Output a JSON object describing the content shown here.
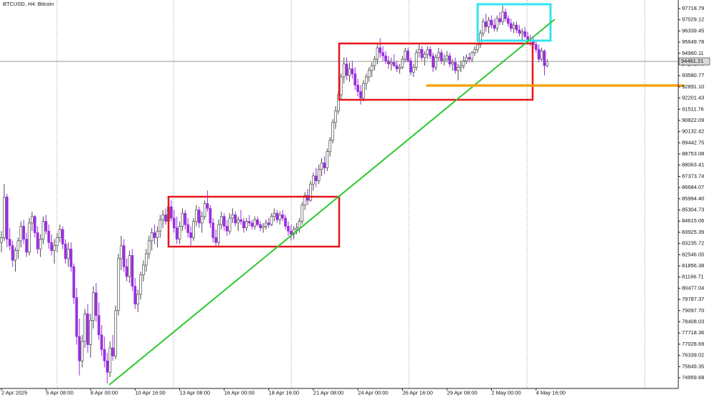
{
  "chart_data": {
    "type": "candlestick",
    "title": "BTCUSD, H4:  Bitcoin",
    "up_color": "#ffffff",
    "down_color": "#9a2ee0",
    "outline_color": "#4a4a4a",
    "last_price": 94461.21,
    "ylim": [
      74300,
      98246
    ],
    "yticks": [
      97718.79,
      97029.12,
      96339.45,
      95649.78,
      94960.11,
      94270.44,
      93580.77,
      {
        "value": 92891.1,
        "label": "92891.10"
      },
      92201.43,
      91511.76,
      90822.09,
      90132.42,
      89442.75,
      88753.08,
      88063.41,
      87373.74,
      86684.07,
      {
        "value": 85994.4,
        "label": "85994.40"
      },
      85304.73,
      84615.06,
      83925.39,
      83235.72,
      82546.05,
      81856.38,
      81166.71,
      80477.04,
      79787.37,
      {
        "value": 79097.7,
        "label": "79097.70"
      },
      78408.03,
      77718.36,
      77028.69,
      76339.02,
      75649.35,
      74959.68
    ],
    "categories": [
      "2 Apr 2025",
      null,
      null,
      null,
      null,
      null,
      null,
      null,
      null,
      null,
      null,
      null,
      null,
      null,
      null,
      null,
      "5 Apr 08:00",
      null,
      null,
      null,
      null,
      null,
      null,
      null,
      null,
      null,
      null,
      null,
      null,
      null,
      null,
      null,
      "8 Apr 00:00",
      null,
      null,
      null,
      null,
      null,
      null,
      null,
      null,
      null,
      null,
      null,
      null,
      null,
      null,
      null,
      "10 Apr 16:00",
      null,
      null,
      null,
      null,
      null,
      null,
      null,
      null,
      null,
      null,
      null,
      null,
      null,
      null,
      null,
      "13 Apr 08:00",
      null,
      null,
      null,
      null,
      null,
      null,
      null,
      null,
      null,
      null,
      null,
      null,
      null,
      null,
      null,
      "16 Apr 00:00",
      null,
      null,
      null,
      null,
      null,
      null,
      null,
      null,
      null,
      null,
      null,
      null,
      null,
      null,
      null,
      "18 Apr 16:00",
      null,
      null,
      null,
      null,
      null,
      null,
      null,
      null,
      null,
      null,
      null,
      null,
      null,
      null,
      null,
      "21 Apr 08:00",
      null,
      null,
      null,
      null,
      null,
      null,
      null,
      null,
      null,
      null,
      null,
      null,
      null,
      null,
      null,
      "24 Apr 00:00",
      null,
      null,
      null,
      null,
      null,
      null,
      null,
      null,
      null,
      null,
      null,
      null,
      null,
      null,
      null,
      "26 Apr 16:00",
      null,
      null,
      null,
      null,
      null,
      null,
      null,
      null,
      null,
      null,
      null,
      null,
      null,
      null,
      null,
      "29 Apr 08:00",
      null,
      null,
      null,
      null,
      null,
      null,
      null,
      null,
      null,
      null,
      null,
      null,
      null,
      null,
      null,
      "2 May 00:00",
      null,
      null,
      null,
      null,
      null,
      null,
      null,
      null,
      null,
      null,
      null,
      null,
      null,
      null,
      null,
      "4 May 16:00",
      null,
      null,
      null,
      null
    ],
    "candles": [
      [
        83300,
        84000,
        82700,
        83600
      ],
      [
        83600,
        86900,
        83400,
        86100
      ],
      [
        86100,
        86300,
        83000,
        83500
      ],
      [
        83500,
        84200,
        82800,
        83100
      ],
      [
        83100,
        83400,
        81800,
        82200
      ],
      [
        82200,
        83000,
        81500,
        82800
      ],
      [
        82800,
        83600,
        82300,
        83400
      ],
      [
        83400,
        84600,
        83000,
        84300
      ],
      [
        84300,
        84700,
        83200,
        83500
      ],
      [
        83500,
        83900,
        82400,
        82700
      ],
      [
        82700,
        84800,
        82500,
        84500
      ],
      [
        84500,
        85200,
        84000,
        84900
      ],
      [
        84900,
        85000,
        83600,
        83900
      ],
      [
        83900,
        84300,
        82600,
        82900
      ],
      [
        82900,
        83800,
        82400,
        83500
      ],
      [
        83500,
        84900,
        83200,
        84600
      ],
      [
        84600,
        85000,
        83800,
        84000
      ],
      [
        84000,
        84400,
        82900,
        83300
      ],
      [
        83300,
        83800,
        82500,
        82800
      ],
      [
        82800,
        83500,
        82000,
        83100
      ],
      [
        83100,
        83900,
        82700,
        83600
      ],
      [
        83600,
        84400,
        83300,
        84100
      ],
      [
        84100,
        84300,
        82900,
        83200
      ],
      [
        83200,
        83500,
        82000,
        82300
      ],
      [
        82300,
        83300,
        81800,
        82900
      ],
      [
        82900,
        83300,
        81500,
        81800
      ],
      [
        81800,
        82000,
        79500,
        79900
      ],
      [
        79900,
        80500,
        77000,
        77500
      ],
      [
        77500,
        78600,
        75100,
        76000
      ],
      [
        76000,
        77600,
        75600,
        77200
      ],
      [
        77200,
        79200,
        76800,
        78900
      ],
      [
        78900,
        79500,
        76500,
        77000
      ],
      [
        77000,
        78900,
        76200,
        78500
      ],
      [
        78500,
        80600,
        78000,
        80200
      ],
      [
        80200,
        80800,
        78400,
        78800
      ],
      [
        78800,
        79600,
        77300,
        77600
      ],
      [
        77600,
        78200,
        76300,
        76700
      ],
      [
        76700,
        77500,
        75600,
        76000
      ],
      [
        76000,
        76500,
        74600,
        75300
      ],
      [
        75300,
        77200,
        75000,
        76800
      ],
      [
        76800,
        77600,
        76000,
        76300
      ],
      [
        76300,
        79400,
        76100,
        79100
      ],
      [
        79100,
        82600,
        78800,
        82300
      ],
      [
        82300,
        83700,
        81600,
        83100
      ],
      [
        83100,
        83500,
        81500,
        81800
      ],
      [
        81800,
        82300,
        80900,
        81200
      ],
      [
        81200,
        82800,
        80800,
        82500
      ],
      [
        82500,
        82900,
        80300,
        80600
      ],
      [
        80600,
        81100,
        79200,
        79500
      ],
      [
        79500,
        80400,
        79000,
        80100
      ],
      [
        80100,
        81500,
        79800,
        81300
      ],
      [
        81300,
        82200,
        80900,
        81900
      ],
      [
        81900,
        82900,
        81500,
        82600
      ],
      [
        82600,
        83700,
        82300,
        83400
      ],
      [
        83400,
        84200,
        82800,
        83900
      ],
      [
        83900,
        84400,
        83200,
        83600
      ],
      [
        83600,
        84300,
        83000,
        84000
      ],
      [
        84000,
        85000,
        83600,
        84700
      ],
      [
        84700,
        85300,
        84200,
        85000
      ],
      [
        85000,
        85400,
        84400,
        84600
      ],
      [
        84600,
        85700,
        84300,
        85500
      ],
      [
        85500,
        85900,
        84600,
        84800
      ],
      [
        84800,
        85300,
        83900,
        84200
      ],
      [
        84200,
        84900,
        83200,
        83500
      ],
      [
        83500,
        84600,
        83200,
        84300
      ],
      [
        84300,
        85400,
        84000,
        85100
      ],
      [
        85100,
        85300,
        84100,
        84400
      ],
      [
        84400,
        84800,
        83600,
        83900
      ],
      [
        83900,
        84300,
        83100,
        83600
      ],
      [
        83600,
        84800,
        83400,
        84600
      ],
      [
        84600,
        85600,
        84300,
        85300
      ],
      [
        85300,
        85500,
        84200,
        84500
      ],
      [
        84500,
        85200,
        83900,
        84900
      ],
      [
        84900,
        85900,
        84700,
        85700
      ],
      [
        85700,
        86500,
        85200,
        85400
      ],
      [
        85400,
        85600,
        84200,
        84500
      ],
      [
        84500,
        84800,
        83300,
        83600
      ],
      [
        83600,
        84100,
        83000,
        83300
      ],
      [
        83300,
        84700,
        83100,
        84400
      ],
      [
        84400,
        85200,
        84100,
        84900
      ],
      [
        84900,
        85100,
        84000,
        84300
      ],
      [
        84300,
        84700,
        83700,
        84000
      ],
      [
        84000,
        85100,
        83800,
        84800
      ],
      [
        84800,
        85400,
        84500,
        85000
      ],
      [
        85000,
        85200,
        84300,
        84500
      ],
      [
        84500,
        84900,
        84000,
        84700
      ],
      [
        84700,
        85300,
        84400,
        84600
      ],
      [
        84600,
        84800,
        83900,
        84200
      ],
      [
        84200,
        84800,
        84000,
        84600
      ],
      [
        84600,
        85000,
        84300,
        84500
      ],
      [
        84500,
        84700,
        84100,
        84300
      ],
      [
        84300,
        84900,
        84100,
        84700
      ],
      [
        84700,
        84900,
        84300,
        84400
      ],
      [
        84400,
        84600,
        84000,
        84200
      ],
      [
        84200,
        84500,
        83900,
        84300
      ],
      [
        84300,
        84700,
        84100,
        84500
      ],
      [
        84500,
        84800,
        84200,
        84400
      ],
      [
        84400,
        85100,
        84300,
        84900
      ],
      [
        84900,
        85400,
        84600,
        85100
      ],
      [
        85100,
        85300,
        84500,
        84700
      ],
      [
        84700,
        85200,
        84400,
        85000
      ],
      [
        85000,
        85300,
        84600,
        84800
      ],
      [
        84800,
        85000,
        84100,
        84300
      ],
      [
        84300,
        84600,
        83700,
        84000
      ],
      [
        84000,
        84400,
        83400,
        83800
      ],
      [
        83800,
        84300,
        83500,
        84100
      ],
      [
        84100,
        84500,
        83800,
        84200
      ],
      [
        84200,
        84800,
        83900,
        84600
      ],
      [
        84600,
        85800,
        84400,
        85600
      ],
      [
        85600,
        86400,
        85300,
        86200
      ],
      [
        86200,
        86600,
        85600,
        85900
      ],
      [
        85900,
        87100,
        85800,
        86900
      ],
      [
        86900,
        87600,
        86500,
        87400
      ],
      [
        87400,
        87900,
        86700,
        87100
      ],
      [
        87100,
        88100,
        86900,
        87800
      ],
      [
        87800,
        88500,
        87400,
        88200
      ],
      [
        88200,
        88600,
        87500,
        87900
      ],
      [
        87900,
        89100,
        87700,
        88900
      ],
      [
        88900,
        89800,
        88600,
        89600
      ],
      [
        89600,
        90900,
        89400,
        90700
      ],
      [
        90700,
        91700,
        90300,
        91400
      ],
      [
        91400,
        92600,
        91200,
        92400
      ],
      [
        92400,
        93700,
        92100,
        93500
      ],
      [
        93500,
        94700,
        93100,
        94300
      ],
      [
        94300,
        94700,
        93300,
        93600
      ],
      [
        93600,
        94400,
        93200,
        94000
      ],
      [
        94000,
        94500,
        93400,
        93700
      ],
      [
        93700,
        94100,
        92700,
        93000
      ],
      [
        93000,
        93400,
        92300,
        92600
      ],
      [
        92600,
        93000,
        91800,
        92200
      ],
      [
        92200,
        93300,
        92000,
        93100
      ],
      [
        93100,
        93700,
        92700,
        93500
      ],
      [
        93500,
        94100,
        93200,
        93900
      ],
      [
        93900,
        94400,
        93500,
        94200
      ],
      [
        94200,
        94800,
        93900,
        94600
      ],
      [
        94600,
        95500,
        94300,
        95300
      ],
      [
        95300,
        95900,
        94700,
        95000
      ],
      [
        95000,
        95400,
        94500,
        94800
      ],
      [
        94800,
        95100,
        94300,
        94500
      ],
      [
        94500,
        94800,
        94000,
        94300
      ],
      [
        94300,
        94700,
        93900,
        94400
      ],
      [
        94400,
        94900,
        94100,
        94200
      ],
      [
        94200,
        94500,
        93800,
        94000
      ],
      [
        94000,
        94300,
        93700,
        94100
      ],
      [
        94100,
        94800,
        94000,
        94600
      ],
      [
        94600,
        95300,
        94400,
        95100
      ],
      [
        95100,
        95300,
        94400,
        94500
      ],
      [
        94500,
        94700,
        93600,
        93800
      ],
      [
        93800,
        94300,
        93500,
        94100
      ],
      [
        94100,
        95200,
        93900,
        95000
      ],
      [
        95000,
        95500,
        94700,
        95200
      ],
      [
        95200,
        95400,
        94500,
        94700
      ],
      [
        94700,
        95100,
        94200,
        94900
      ],
      [
        94900,
        95400,
        94600,
        95200
      ],
      [
        95200,
        95400,
        94600,
        94800
      ],
      [
        94800,
        95000,
        93800,
        94100
      ],
      [
        94100,
        94900,
        93900,
        94700
      ],
      [
        94700,
        95300,
        94500,
        95000
      ],
      [
        95000,
        95200,
        94300,
        94500
      ],
      [
        94500,
        94900,
        94200,
        94600
      ],
      [
        94600,
        95100,
        94400,
        94800
      ],
      [
        94800,
        95000,
        94100,
        94300
      ],
      [
        94300,
        94600,
        93900,
        94400
      ],
      [
        94400,
        94700,
        93700,
        93900
      ],
      [
        93900,
        94300,
        93300,
        94100
      ],
      [
        94100,
        94500,
        93800,
        94200
      ],
      [
        94200,
        94800,
        94000,
        94500
      ],
      [
        94500,
        94900,
        94300,
        94700
      ],
      [
        94700,
        95000,
        94400,
        94600
      ],
      [
        94600,
        95100,
        94400,
        95000
      ],
      [
        95000,
        95400,
        94800,
        95200
      ],
      [
        95200,
        95600,
        95000,
        95500
      ],
      [
        95500,
        96400,
        95300,
        96200
      ],
      [
        96200,
        97100,
        96000,
        96900
      ],
      [
        96900,
        97400,
        96300,
        96600
      ],
      [
        96600,
        97200,
        96200,
        97000
      ],
      [
        97000,
        97300,
        96500,
        96700
      ],
      [
        96700,
        97100,
        96300,
        96500
      ],
      [
        96500,
        97300,
        96300,
        97100
      ],
      [
        97100,
        97500,
        96700,
        96900
      ],
      [
        96900,
        97900,
        96700,
        97500
      ],
      [
        97500,
        97700,
        96900,
        97100
      ],
      [
        97100,
        97300,
        96600,
        96800
      ],
      [
        96800,
        97100,
        96300,
        96500
      ],
      [
        96500,
        96900,
        96200,
        96700
      ],
      [
        96700,
        96900,
        96200,
        96400
      ],
      [
        96400,
        96700,
        96000,
        96200
      ],
      [
        96200,
        96500,
        95800,
        96300
      ],
      [
        96300,
        96600,
        95900,
        96000
      ],
      [
        96000,
        96300,
        95600,
        95800
      ],
      [
        95800,
        96100,
        95400,
        95700
      ],
      [
        95700,
        96000,
        95300,
        95500
      ],
      [
        95500,
        95800,
        95000,
        95200
      ],
      [
        95200,
        95500,
        94400,
        94600
      ],
      [
        94600,
        95300,
        94500,
        95100
      ],
      [
        95100,
        95200,
        93600,
        94200
      ],
      [
        94200,
        94600,
        94100,
        94461.21
      ]
    ]
  }
}
